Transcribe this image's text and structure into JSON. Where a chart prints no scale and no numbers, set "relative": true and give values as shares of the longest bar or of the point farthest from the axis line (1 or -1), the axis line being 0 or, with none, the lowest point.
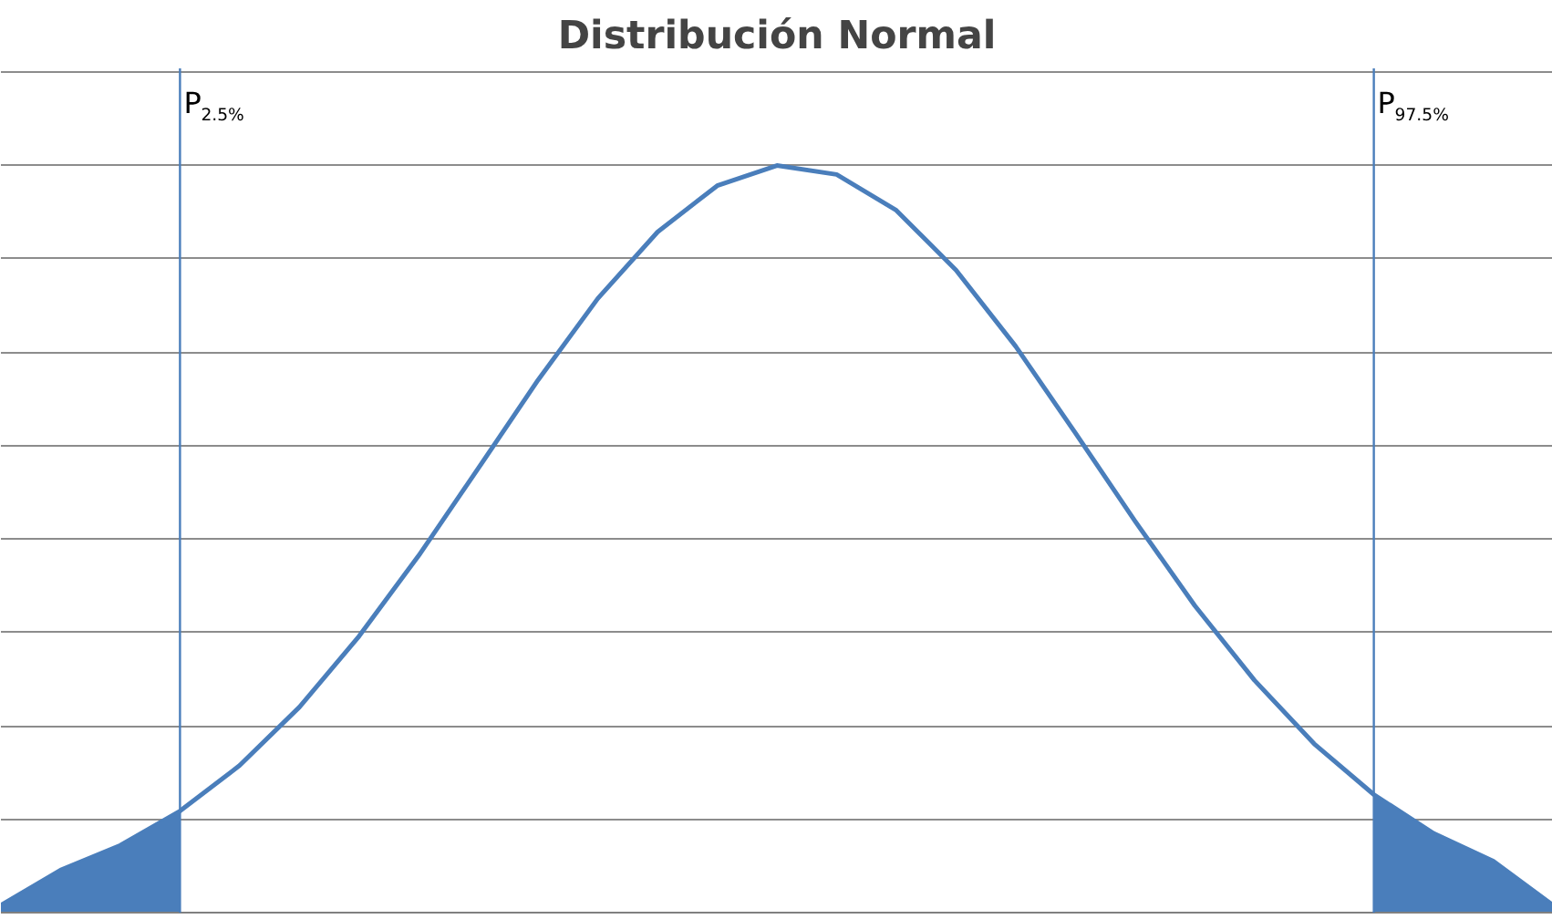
{
  "chart_data": {
    "type": "line",
    "title": "Distribución Normal",
    "relative": true,
    "grid": "y",
    "marker": "none",
    "line_style": "solid",
    "categories": [
      null,
      null,
      null,
      null,
      null,
      null,
      null,
      null,
      null,
      null,
      null,
      null,
      null,
      null,
      null,
      null,
      null,
      null,
      null,
      null,
      null,
      null,
      null,
      null,
      null,
      null,
      null
    ],
    "series": [
      {
        "color": "#4a7ebb",
        "values": [
          0.01,
          0.057,
          0.09,
          0.136,
          0.197,
          0.275,
          0.37,
          0.478,
          0.595,
          0.713,
          0.822,
          0.911,
          0.973,
          1,
          0.988,
          0.94,
          0.86,
          0.758,
          0.642,
          0.524,
          0.411,
          0.311,
          0.226,
          0.158,
          0.106,
          0.069,
          0.01
        ]
      },
      {
        "type": "area",
        "color": "#4a7ebb",
        "values": [
          0.01,
          0.057,
          0.09,
          0.136,
          null,
          null,
          null,
          null,
          null,
          null,
          null,
          null,
          null,
          null,
          null,
          null,
          null,
          null,
          null,
          null,
          null,
          null,
          null,
          null,
          null,
          null,
          null
        ]
      },
      {
        "type": "area",
        "color": "#4a7ebb",
        "values": [
          null,
          null,
          null,
          null,
          null,
          null,
          null,
          null,
          null,
          null,
          null,
          null,
          null,
          null,
          null,
          null,
          null,
          null,
          null,
          null,
          null,
          null,
          null,
          0.158,
          0.106,
          0.069,
          0.01
        ]
      }
    ],
    "annotations": [
      "P$_{2.5%}$",
      "P$_{97.5%}$"
    ]
  }
}
